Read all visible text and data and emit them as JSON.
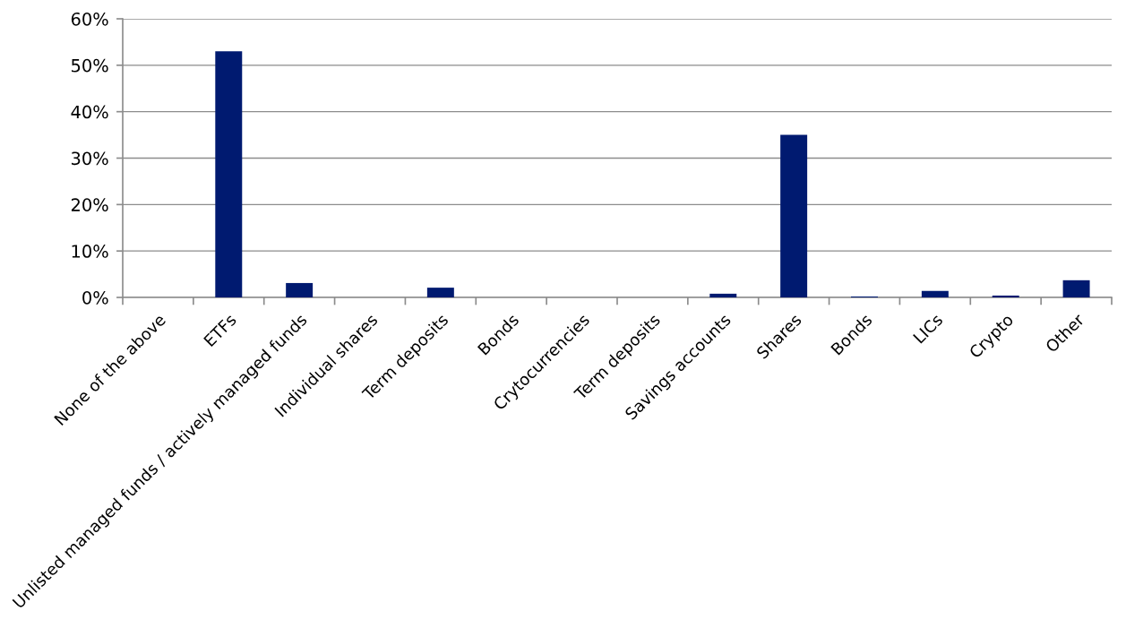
{
  "chart_data": {
    "type": "bar",
    "categories": [
      "None of the above",
      "ETFs",
      "Unlisted managed funds / actively managed funds",
      "Individual shares",
      "Term deposits",
      "Bonds",
      "Crytocurrencies",
      "Term deposits",
      "Savings accounts",
      "Shares",
      "Bonds",
      "LICs",
      "Crypto",
      "Other"
    ],
    "values": [
      0,
      53,
      3.1,
      0,
      2.1,
      0,
      0,
      0,
      0.8,
      35,
      0.2,
      1.4,
      0.4,
      3.7
    ],
    "color": "#001a70",
    "ylim": [
      0,
      60
    ],
    "yticks": [
      {
        "value": 0,
        "label": "0%"
      },
      {
        "value": 10,
        "label": "10%"
      },
      {
        "value": 20,
        "label": "20%"
      },
      {
        "value": 30,
        "label": "30%"
      },
      {
        "value": 40,
        "label": "40%"
      },
      {
        "value": 50,
        "label": "50%"
      },
      {
        "value": 60,
        "label": "60%"
      }
    ],
    "grid": "y",
    "legend": false
  }
}
